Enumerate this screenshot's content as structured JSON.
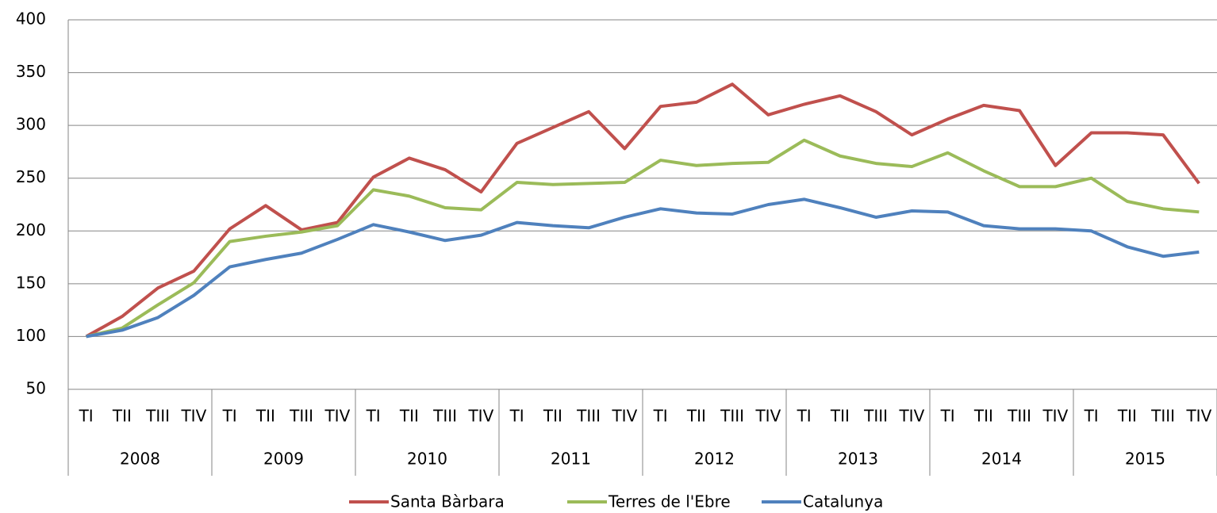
{
  "chart_data": {
    "type": "line",
    "categories": [
      "TI",
      "TII",
      "TIII",
      "TIV",
      "TI",
      "TII",
      "TIII",
      "TIV",
      "TI",
      "TII",
      "TIII",
      "TIV",
      "TI",
      "TII",
      "TIII",
      "TIV",
      "TI",
      "TII",
      "TIII",
      "TIV",
      "TI",
      "TII",
      "TIII",
      "TIV",
      "TI",
      "TII",
      "TIII",
      "TIV",
      "TI",
      "TII",
      "TIII",
      "TIV"
    ],
    "groups": [
      "2008",
      "2009",
      "2010",
      "2011",
      "2012",
      "2013",
      "2014",
      "2015"
    ],
    "series": [
      {
        "name": "Santa Bàrbara",
        "color": "#c0504d",
        "values": [
          100,
          119,
          146,
          162,
          202,
          224,
          201,
          208,
          251,
          269,
          258,
          237,
          283,
          298,
          313,
          278,
          318,
          322,
          339,
          310,
          320,
          328,
          313,
          291,
          306,
          319,
          314,
          262,
          293,
          293,
          291,
          245
        ]
      },
      {
        "name": "Terres de l'Ebre",
        "color": "#9bbb59",
        "values": [
          100,
          108,
          130,
          151,
          190,
          195,
          199,
          205,
          239,
          233,
          222,
          220,
          246,
          244,
          245,
          246,
          267,
          262,
          264,
          265,
          286,
          271,
          264,
          261,
          274,
          257,
          242,
          242,
          250,
          228,
          221,
          218
        ]
      },
      {
        "name": "Catalunya",
        "color": "#4f81bd",
        "values": [
          100,
          106,
          118,
          139,
          166,
          173,
          179,
          192,
          206,
          199,
          191,
          196,
          208,
          205,
          203,
          213,
          221,
          217,
          216,
          225,
          230,
          222,
          213,
          219,
          218,
          205,
          202,
          202,
          200,
          185,
          176,
          180
        ]
      }
    ],
    "ylim": [
      50,
      400
    ],
    "yticks": [
      50,
      100,
      150,
      200,
      250,
      300,
      350,
      400
    ],
    "grid": true,
    "legend": "bottom"
  }
}
